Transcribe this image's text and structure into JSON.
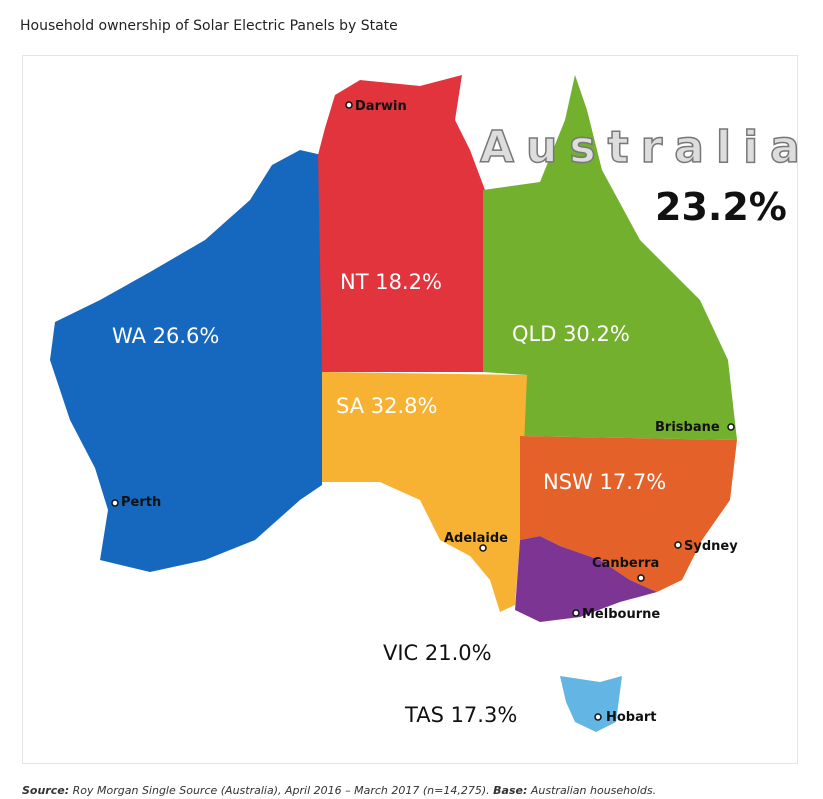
{
  "title": "Household ownership of Solar Electric Panels by State",
  "map": {
    "country": {
      "name": "Australia",
      "value": "23.2%"
    },
    "states": [
      {
        "label": "WA 26.6%"
      },
      {
        "label": "NT 18.2%"
      },
      {
        "label": "QLD 30.2%"
      },
      {
        "label": "SA 32.8%"
      },
      {
        "label": "NSW 17.7%"
      },
      {
        "label": "VIC 21.0%"
      },
      {
        "label": "TAS 17.3%"
      }
    ],
    "cities": [
      "Darwin",
      "Perth",
      "Brisbane",
      "Adelaide",
      "Sydney",
      "Canberra",
      "Melbourne",
      "Hobart"
    ]
  },
  "source": {
    "label": "Source:",
    "text": "Roy Morgan Single Source (Australia), April 2016 – March 2017 (n=14,275).",
    "base_label": "Base:",
    "base_text": "Australian households."
  }
}
